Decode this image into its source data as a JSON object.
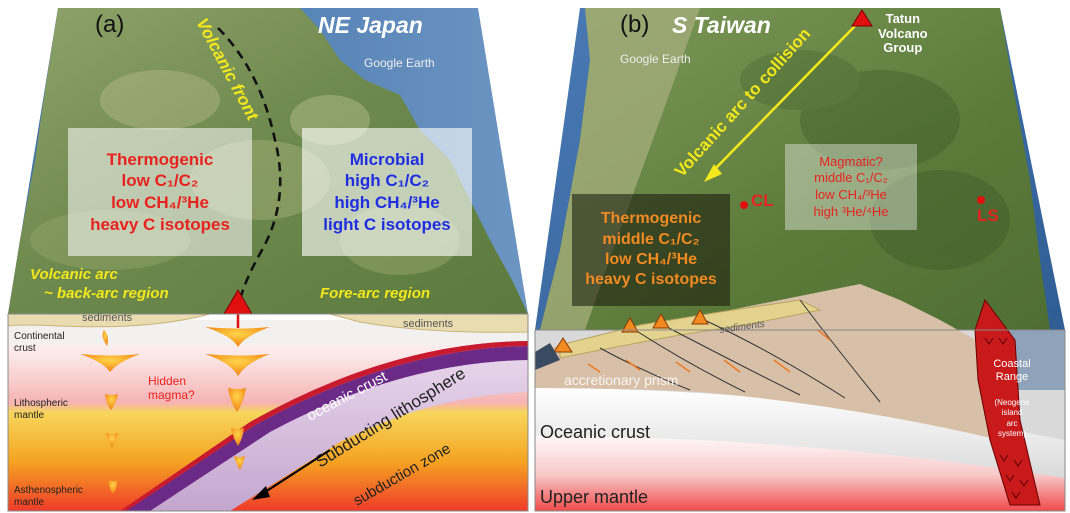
{
  "panel_a": {
    "letter": "(a)",
    "region": "NE Japan",
    "watermark": "Google Earth",
    "volcanic_front": "Volcanic front",
    "thermogenic_box": {
      "line1": "Thermogenic",
      "line2": "low C₁/C₂",
      "line3": "low CH₄/³He",
      "line4": "heavy C isotopes"
    },
    "microbial_box": {
      "line1": "Microbial",
      "line2": "high C₁/C₂",
      "line3": "high CH₄/³He",
      "line4": "light C isotopes"
    },
    "volcanic_arc_line1": "Volcanic arc",
    "volcanic_arc_line2": "~ back-arc region",
    "fore_arc": "Fore-arc region",
    "sediments_left": "sediments",
    "sediments_right": "sediments",
    "continental_crust_1": "Continental",
    "continental_crust_2": "crust",
    "lithospheric_mantle_1": "Lithospheric",
    "lithospheric_mantle_2": "mantle",
    "asthenospheric_mantle_1": "Asthenospheric",
    "asthenospheric_mantle_2": "mantle",
    "hidden_magma_1": "Hidden",
    "hidden_magma_2": "magma?",
    "oceanic_crust": "oceanic crust",
    "subducting_lithosphere": "Subducting lithosphere",
    "subduction_zone": "subduction zone"
  },
  "panel_b": {
    "letter": "(b)",
    "region": "S Taiwan",
    "watermark": "Google Earth",
    "tatun_1": "Tatun",
    "tatun_2": "Volcano",
    "tatun_3": "Group",
    "arc_to_collision": "Volcanic arc to collision",
    "magmatic_box": {
      "line1": "Magmatic?",
      "line2": "middle C₁/C₂",
      "line3": "low CH₄/³He",
      "line4": "high ³He/⁴He"
    },
    "cl": "CL",
    "ls": "LS",
    "thermogenic_box": {
      "line1": "Thermogenic",
      "line2": "middle C₁/C₂",
      "line3": "low CH₄/³He",
      "line4": "heavy C isotopes"
    },
    "sediments": "sediments",
    "accretionary_prism": "accretionary prism",
    "oceanic_crust": "Oceanic crust",
    "upper_mantle": "Upper mantle",
    "coastal_range_1": "Coastal",
    "coastal_range_2": "Range",
    "neogene_1": "(Neogene",
    "neogene_2": "island",
    "neogene_3": "arc",
    "neogene_4": "system)"
  },
  "colors": {
    "red_text": "#e8231f",
    "blue_text": "#1f2ee0",
    "yellow_text": "#f2e81c",
    "orange_text": "#f28a22",
    "volcano_red": "#e01010"
  }
}
